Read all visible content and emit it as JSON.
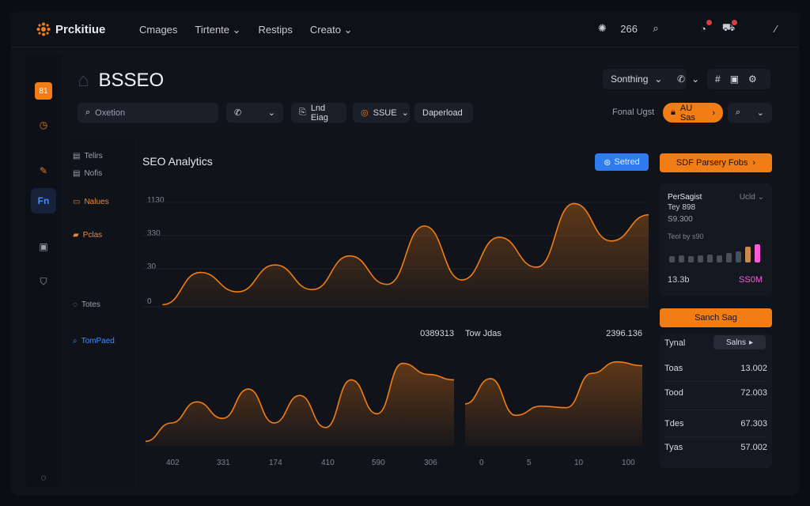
{
  "app": {
    "name": "Prckitiue"
  },
  "nav": {
    "items": [
      "Cmages",
      "Tirtente",
      "Restips",
      "Creato"
    ]
  },
  "topbar": {
    "count": "266"
  },
  "sidebar": {
    "brand_badge": "81",
    "active_label": "Fn"
  },
  "page": {
    "title": "BSSEO"
  },
  "header": {
    "sort_label": "Sonthing"
  },
  "filters": {
    "search_placeholder": "Oxetion",
    "tag1": "Lnd Eiag",
    "tag2": "SSUE",
    "tag3": "Daperload",
    "total_label": "Fonal Ugst",
    "all_label": "AU Sas"
  },
  "submenu": {
    "items": [
      "Telirs",
      "Nofis",
      "Nalues",
      "Pclas",
      "Totes",
      "TomPaed"
    ]
  },
  "chart": {
    "title": "SEO Analytics",
    "save_label": "Setred",
    "y_ticks": [
      "1130",
      "330",
      "30",
      "0"
    ]
  },
  "subcharts": {
    "left_value": "0389313",
    "right_title": "Tow Jdas",
    "right_value": "2396.136",
    "left_x_ticks": [
      "402",
      "331",
      "174",
      "410",
      "590",
      "306"
    ],
    "right_x_ticks": [
      "0",
      "5",
      "10",
      "100"
    ]
  },
  "right_panel": {
    "top_button": "SDF Parsery Fobs",
    "card_title": "PerSagist",
    "card_sub1": "Tey 898",
    "card_sub2": "S9.300",
    "card_dropdown": "Ucld",
    "card_caption": "Teol by s90",
    "card_left_value": "13.3b",
    "card_right_value": "SS0M",
    "mid_button": "Sanch Sag",
    "table_title": "Tynal",
    "table_select": "Salns",
    "rows": [
      {
        "label": "Toas",
        "value": "13.002"
      },
      {
        "label": "Tood",
        "value": "72.003"
      },
      {
        "label": "Tdes",
        "value": "67.303"
      },
      {
        "label": "Tyas",
        "value": "57.002"
      }
    ]
  },
  "chart_data": [
    {
      "type": "area",
      "title": "SEO Analytics",
      "yticks": [
        "1130",
        "330",
        "30",
        "0"
      ],
      "series": [
        {
          "values": [
            0.05,
            0.48,
            0.22,
            0.58,
            0.25,
            0.7,
            0.32,
            1.1,
            0.38,
            0.95,
            0.55,
            1.4,
            0.9,
            1.25
          ]
        }
      ]
    },
    {
      "type": "area",
      "xticks": [
        "402",
        "331",
        "174",
        "410",
        "590",
        "306"
      ],
      "series": [
        {
          "values": [
            0.05,
            0.25,
            0.48,
            0.3,
            0.62,
            0.25,
            0.55,
            0.2,
            0.72,
            0.35,
            0.9,
            0.78,
            0.72
          ]
        }
      ]
    },
    {
      "type": "area",
      "title": "Tow Jdas",
      "xticks": [
        "0",
        "5",
        "10",
        "100"
      ],
      "series": [
        {
          "values": [
            0.55,
            0.88,
            0.4,
            0.52,
            0.5,
            0.95,
            1.1,
            1.05
          ]
        }
      ]
    }
  ],
  "mini_bars": {
    "values": [
      0.3,
      0.35,
      0.3,
      0.35,
      0.4,
      0.35,
      0.45,
      0.55,
      0.75,
      0.9
    ]
  },
  "colors": {
    "accent": "#f07d16",
    "blue": "#2f7cf0",
    "pink": "#ff5bd6"
  }
}
